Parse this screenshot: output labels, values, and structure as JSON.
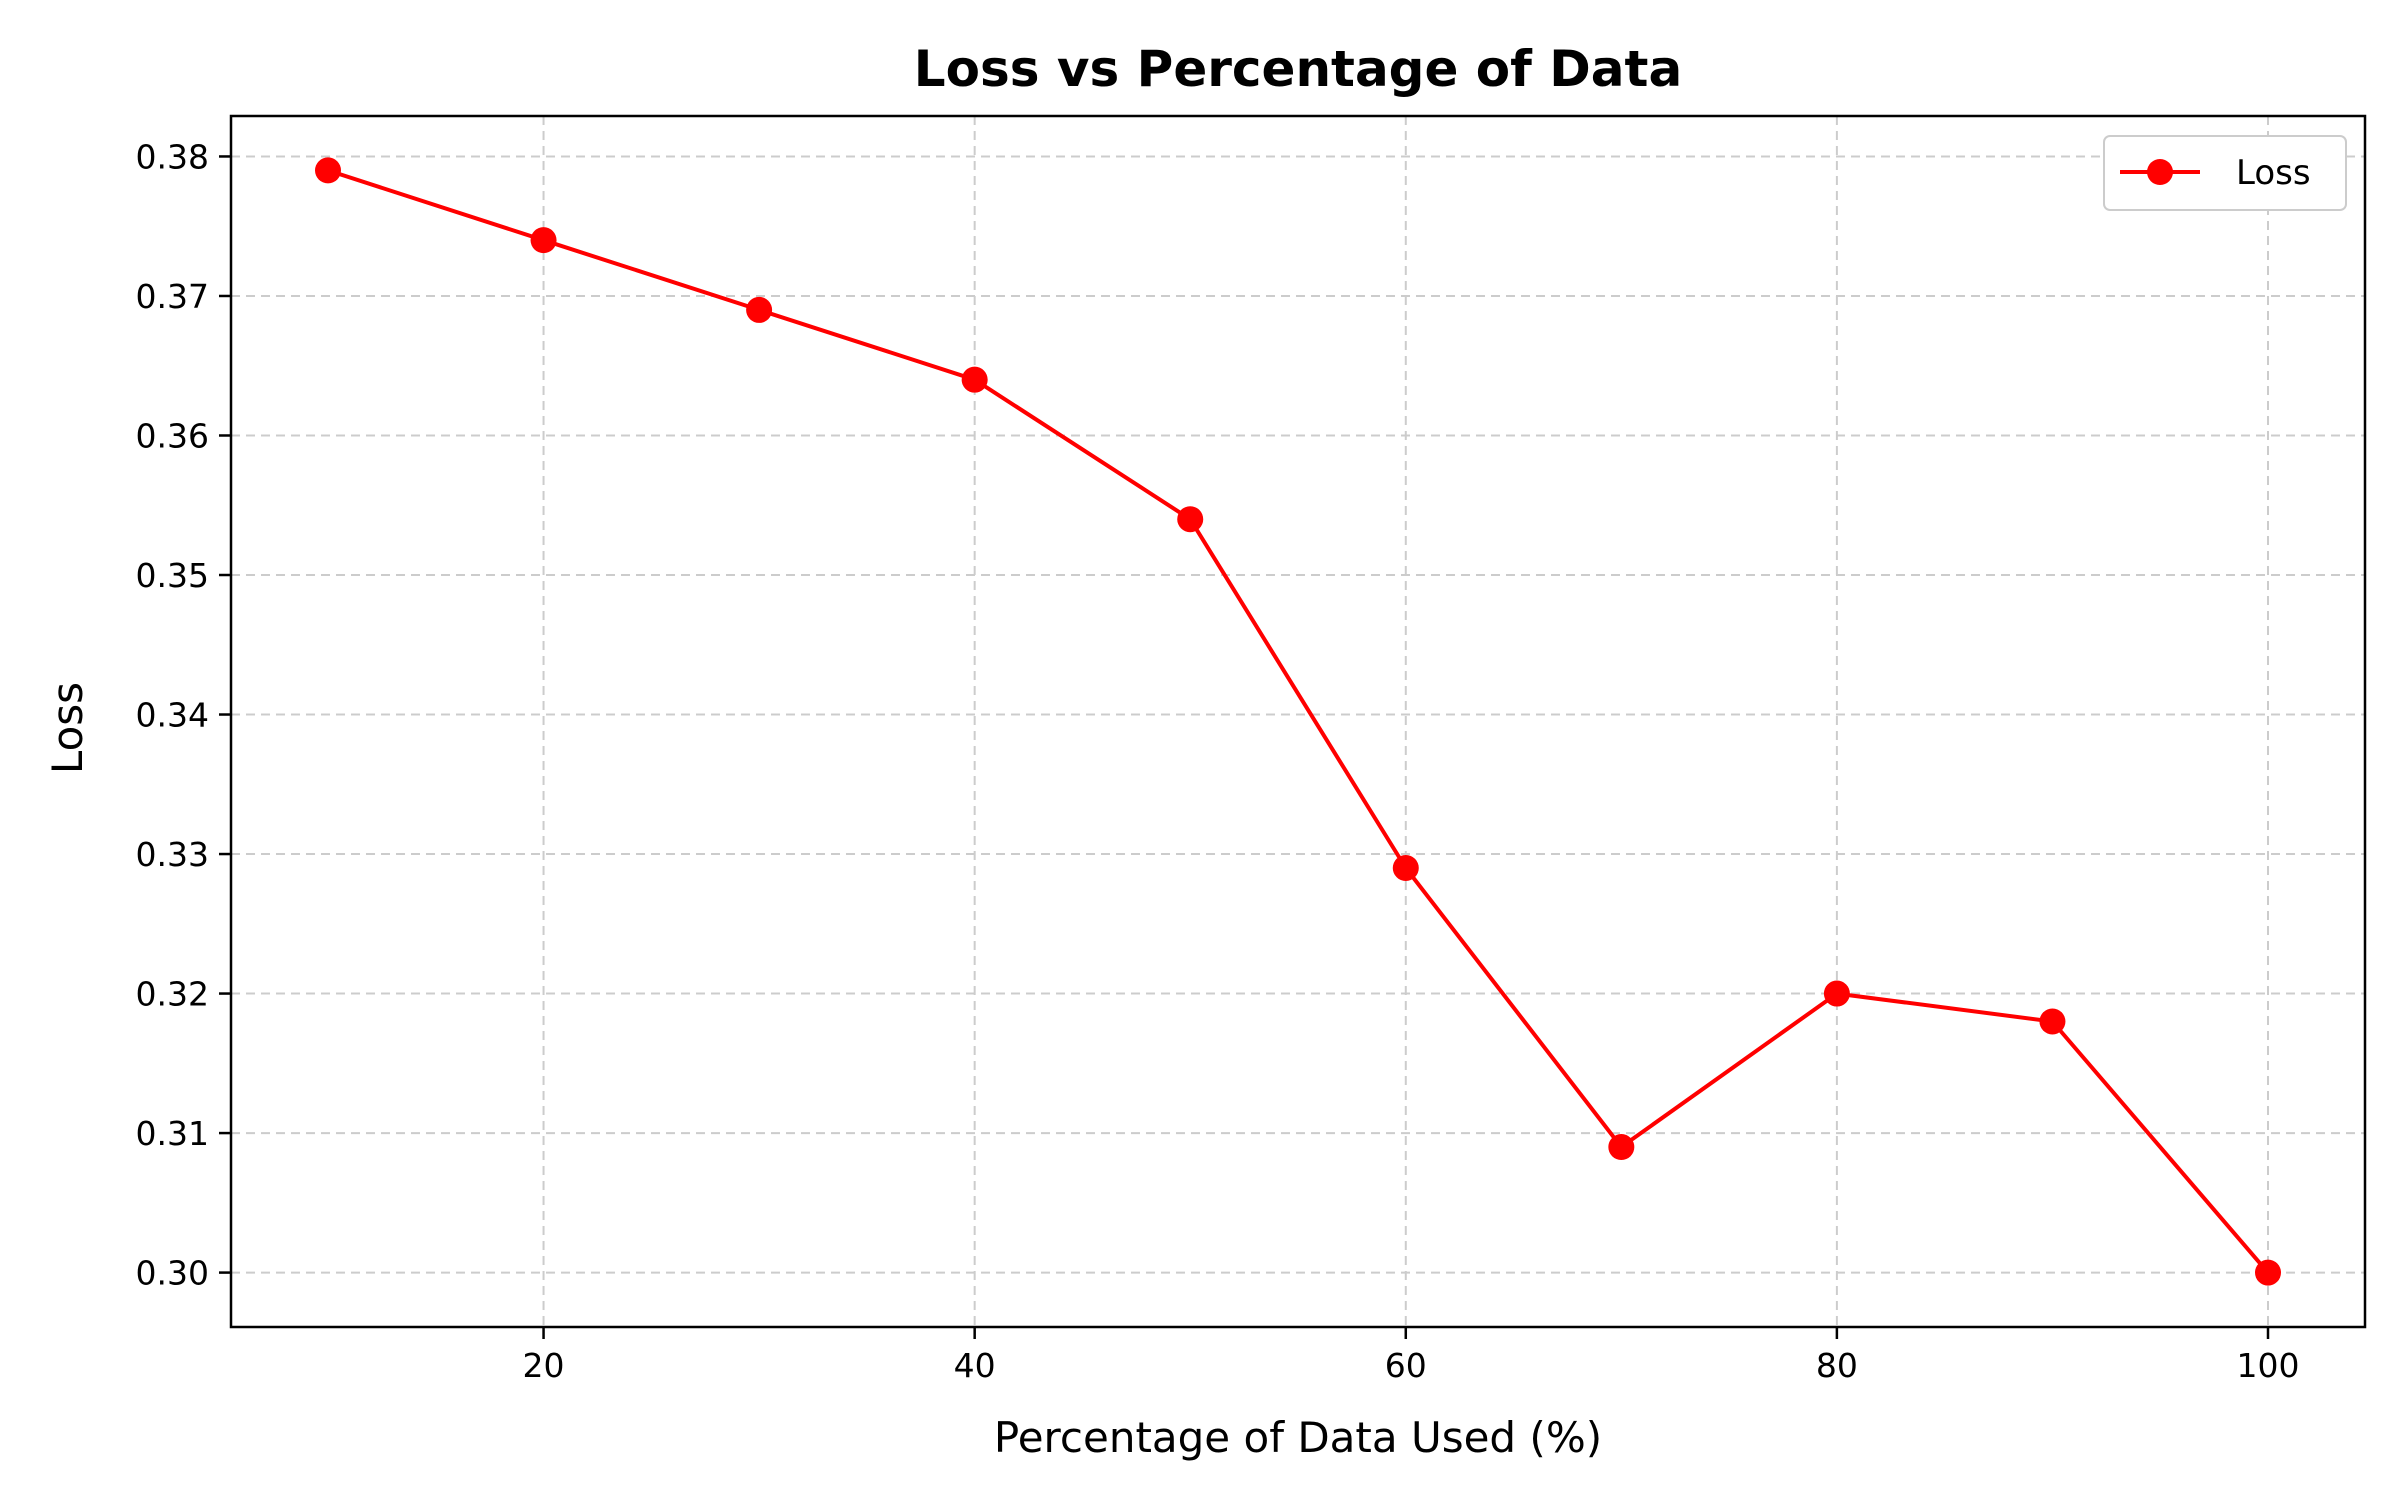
{
  "chart_data": {
    "type": "line",
    "title": "Loss vs Percentage of Data",
    "xlabel": "Percentage of Data Used (%)",
    "ylabel": "Loss",
    "xlim": [
      5.5,
      104.5
    ],
    "ylim": [
      0.2961,
      0.3829
    ],
    "xticks": [
      20,
      40,
      60,
      80,
      100
    ],
    "xtick_labels": [
      "20",
      "40",
      "60",
      "80",
      "100"
    ],
    "yticks": [
      0.3,
      0.31,
      0.32,
      0.33,
      0.34,
      0.35,
      0.36,
      0.37,
      0.38
    ],
    "ytick_labels": [
      "0.30",
      "0.31",
      "0.32",
      "0.33",
      "0.34",
      "0.35",
      "0.36",
      "0.37",
      "0.38"
    ],
    "grid": true,
    "legend_position": "top-right",
    "series": [
      {
        "name": "Loss",
        "color": "#ff0000",
        "marker": "circle",
        "x": [
          10,
          20,
          30,
          40,
          50,
          60,
          70,
          80,
          90,
          100
        ],
        "y": [
          0.379,
          0.374,
          0.369,
          0.364,
          0.354,
          0.329,
          0.309,
          0.32,
          0.318,
          0.3
        ]
      }
    ]
  }
}
